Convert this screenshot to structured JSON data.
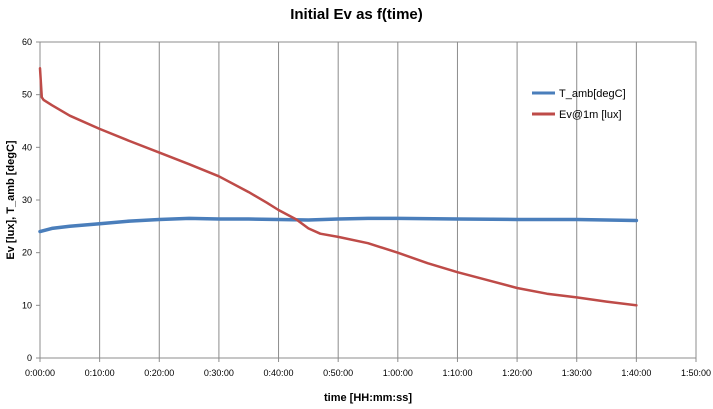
{
  "chart_data": {
    "type": "line",
    "title": "Initial Ev as f(time)",
    "xlabel": "time [HH:mm:ss]",
    "ylabel": "Ev [lux], T_amb [degC]",
    "x_tick_labels": [
      "0:00:00",
      "0:10:00",
      "0:20:00",
      "0:30:00",
      "0:40:00",
      "0:50:00",
      "1:00:00",
      "1:10:00",
      "1:20:00",
      "1:30:00",
      "1:40:00",
      "1:50:00"
    ],
    "y_ticks": [
      0,
      10,
      20,
      30,
      40,
      50,
      60
    ],
    "xlim_minutes": [
      0,
      110
    ],
    "ylim": [
      0,
      60
    ],
    "grid": "vertical",
    "legend_position": "right",
    "series": [
      {
        "name": "T_amb[degC]",
        "color": "#4a7ebb",
        "x_minutes": [
          0,
          2,
          5,
          10,
          15,
          20,
          25,
          30,
          35,
          40,
          45,
          50,
          55,
          60,
          70,
          80,
          90,
          100
        ],
        "values": [
          24.0,
          24.6,
          25.0,
          25.5,
          26.0,
          26.3,
          26.5,
          26.4,
          26.4,
          26.3,
          26.2,
          26.4,
          26.5,
          26.5,
          26.4,
          26.3,
          26.3,
          26.1
        ]
      },
      {
        "name": "Ev@1m [lux]",
        "color": "#be4b48",
        "x_minutes": [
          0,
          0.3,
          0.6,
          2,
          5,
          10,
          15,
          20,
          25,
          30,
          35,
          38,
          40,
          43,
          45,
          47,
          50,
          55,
          60,
          65,
          70,
          75,
          80,
          85,
          90,
          95,
          100
        ],
        "values": [
          55,
          49.5,
          49,
          48,
          46,
          43.5,
          41.2,
          39,
          36.8,
          34.5,
          31.5,
          29.5,
          28.1,
          26.3,
          24.6,
          23.6,
          23.0,
          21.8,
          20.0,
          18.0,
          16.3,
          14.8,
          13.3,
          12.2,
          11.5,
          10.7,
          10.0
        ]
      }
    ]
  }
}
